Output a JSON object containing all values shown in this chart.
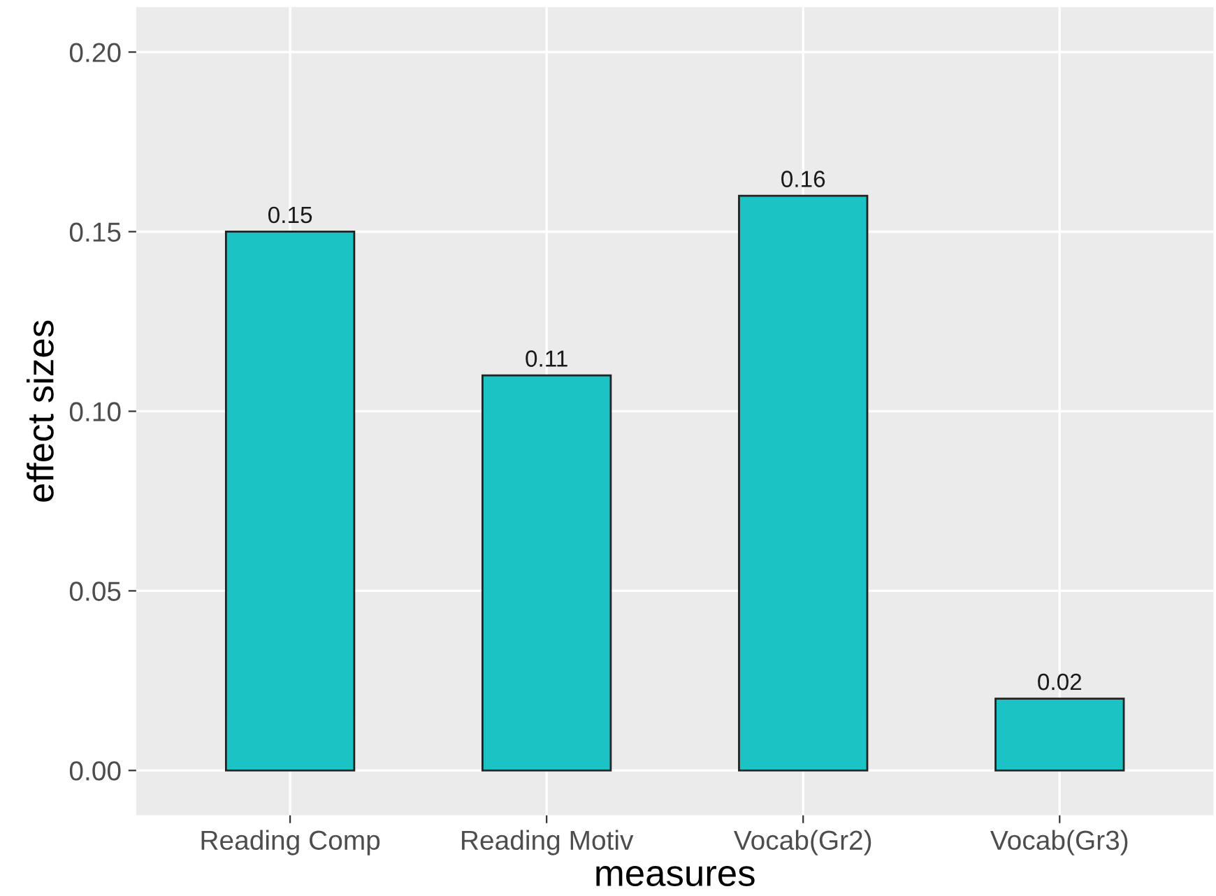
{
  "chart_data": {
    "type": "bar",
    "xlabel": "measures",
    "ylabel": "effect sizes",
    "categories": [
      "Reading Comp",
      "Reading Motiv",
      "Vocab(Gr2)",
      "Vocab(Gr3)"
    ],
    "values": [
      0.15,
      0.11,
      0.16,
      0.02
    ],
    "color": "#1bc3c5",
    "data_labels": true,
    "ylim": [
      -0.0125,
      0.2125
    ],
    "yticks": [
      {
        "value": 0,
        "label": "0.00"
      },
      {
        "value": 0.05,
        "label": "0.05"
      },
      {
        "value": 0.1,
        "label": "0.10"
      },
      {
        "value": 0.15,
        "label": "0.15"
      },
      {
        "value": 0.2,
        "label": "0.20"
      }
    ],
    "grid": true
  }
}
